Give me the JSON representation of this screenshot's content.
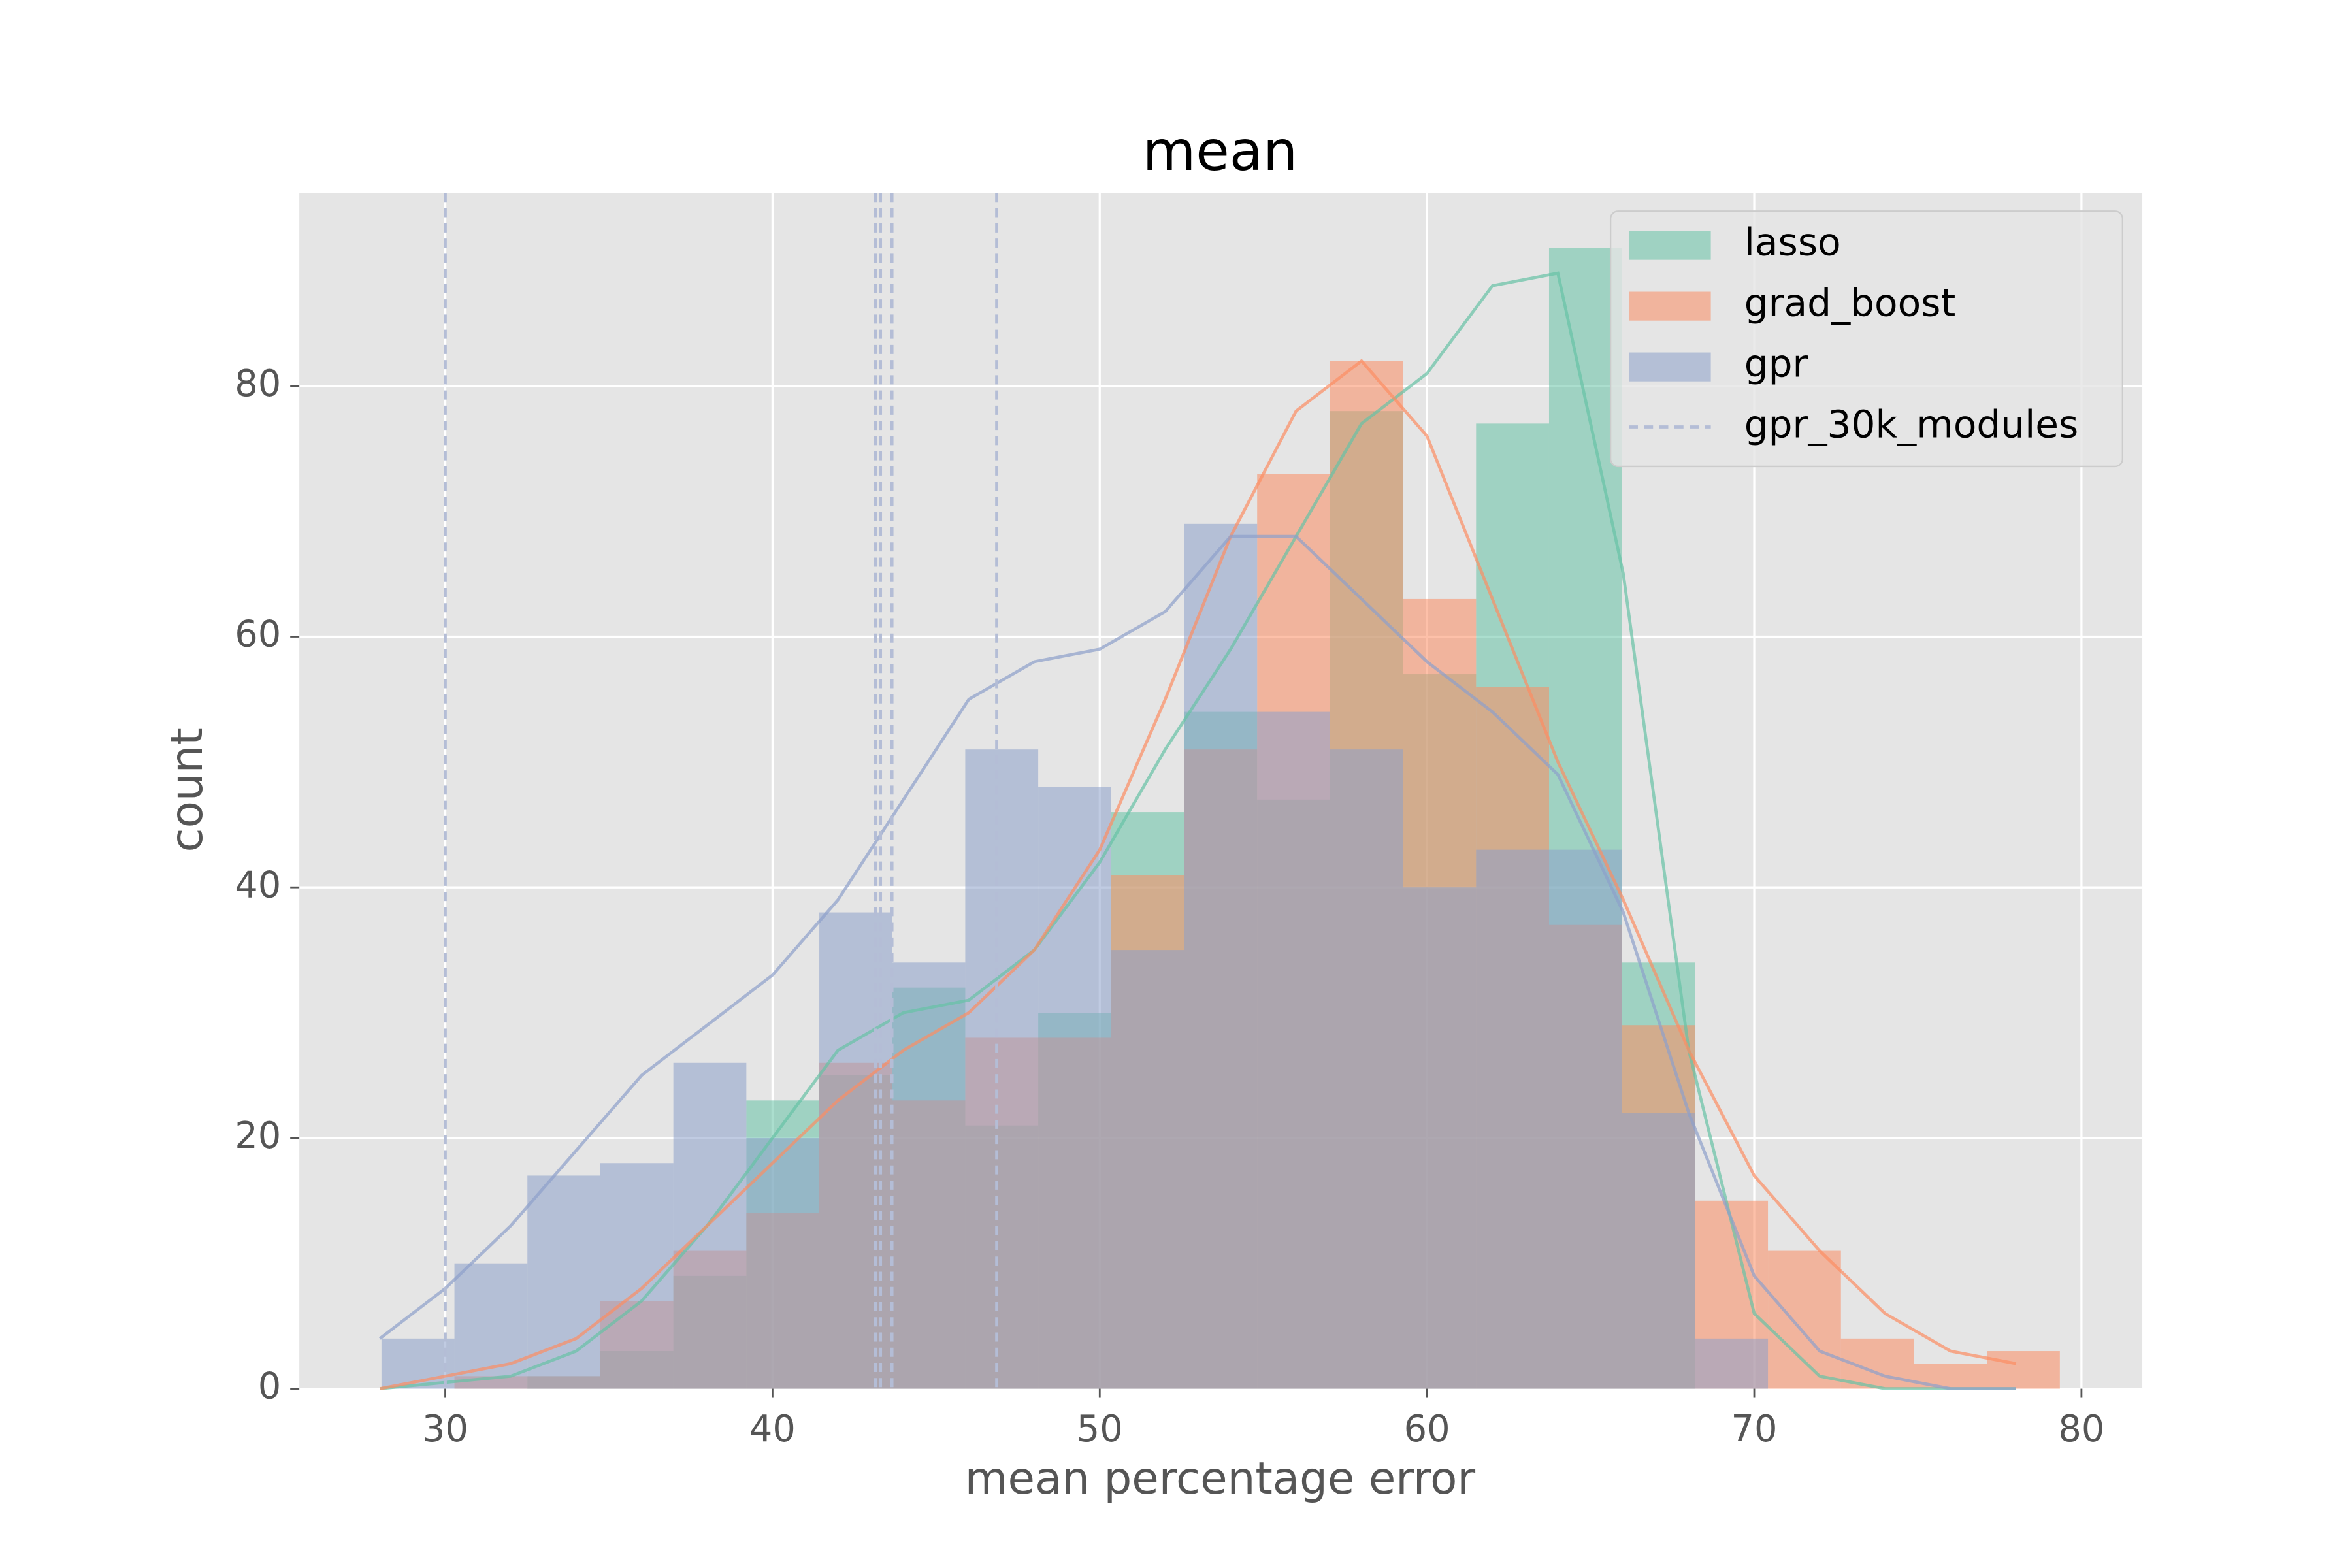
{
  "chart_data": {
    "type": "histogram",
    "title": "mean",
    "xlabel": "mean percentage error",
    "ylabel": "count",
    "bins": [
      28.05,
      30.28,
      32.51,
      34.74,
      36.97,
      39.2,
      41.43,
      43.66,
      45.89,
      48.12,
      50.35,
      52.58,
      54.81,
      57.04,
      59.27,
      61.5,
      63.73,
      65.96,
      68.19,
      70.42,
      72.65,
      74.88,
      77.11,
      79.34
    ],
    "kde_x": [
      28,
      30,
      32,
      34,
      36,
      38,
      40,
      42,
      44,
      46,
      48,
      50,
      52,
      54,
      56,
      58,
      60,
      62,
      64,
      66,
      68,
      70,
      72,
      74,
      76,
      78
    ],
    "series": [
      {
        "name": "lasso",
        "color": "#66c2a5",
        "values": [
          0,
          0,
          1,
          3,
          9,
          23,
          25,
          32,
          21,
          30,
          46,
          54,
          47,
          78,
          57,
          77,
          91,
          34,
          0,
          0,
          0,
          0,
          0
        ],
        "kde": [
          0,
          0.5,
          1,
          3,
          7,
          13,
          20,
          27,
          30,
          31,
          35,
          42,
          51,
          59,
          68,
          77,
          81,
          88,
          89,
          65,
          27,
          6,
          1,
          0,
          0,
          0
        ]
      },
      {
        "name": "grad_boost",
        "color": "#fc8d62",
        "values": [
          0,
          1,
          1,
          7,
          11,
          14,
          26,
          23,
          28,
          28,
          41,
          51,
          73,
          82,
          63,
          56,
          37,
          29,
          15,
          11,
          4,
          2,
          3
        ],
        "kde": [
          0,
          1,
          2,
          4,
          8,
          13,
          18,
          23,
          27,
          30,
          35,
          43,
          55,
          68,
          78,
          82,
          76,
          63,
          50,
          39,
          27,
          17,
          11,
          6,
          3,
          2
        ]
      },
      {
        "name": "gpr",
        "color": "#8da0cb",
        "values": [
          4,
          10,
          17,
          18,
          26,
          20,
          38,
          34,
          51,
          48,
          35,
          69,
          54,
          51,
          40,
          43,
          43,
          22,
          4,
          0,
          0,
          0,
          0
        ],
        "kde": [
          4,
          8,
          13,
          19,
          25,
          29,
          33,
          39,
          47,
          55,
          58,
          59,
          62,
          68,
          68,
          63,
          58,
          54,
          49,
          38,
          22,
          9,
          3,
          1,
          0,
          0
        ]
      }
    ],
    "vlines": {
      "name": "gpr_30k_modules",
      "color": "#b4bdd6",
      "x": [
        30.0,
        43.15,
        43.3,
        43.65,
        46.85
      ]
    },
    "xlim": [
      25.54,
      81.86
    ],
    "ylim": [
      0,
      95.4
    ],
    "xticks": [
      30,
      40,
      50,
      60,
      70,
      80
    ],
    "yticks": [
      0,
      20,
      40,
      60,
      80
    ],
    "grid": true,
    "legend": "upper right"
  }
}
